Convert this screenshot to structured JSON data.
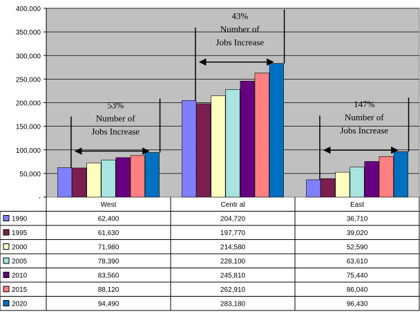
{
  "chart_data": {
    "type": "bar",
    "categories": [
      "West",
      "Centr al",
      "East"
    ],
    "series": [
      {
        "name": "1990",
        "values": [
          62400,
          204720,
          36710
        ],
        "labels": [
          "62,400",
          "204,720",
          "36,710"
        ],
        "color": "#8080ff"
      },
      {
        "name": "1995",
        "values": [
          61630,
          197770,
          39020
        ],
        "labels": [
          "61,630",
          "197,770",
          "39,020"
        ],
        "color": "#7a1f4f"
      },
      {
        "name": "2000",
        "values": [
          71980,
          214580,
          52590
        ],
        "labels": [
          "71,980",
          "214,580",
          "52,590"
        ],
        "color": "#ffffc0"
      },
      {
        "name": "2005",
        "values": [
          78390,
          228100,
          63610
        ],
        "labels": [
          "78,390",
          "228,100",
          "63,610"
        ],
        "color": "#a8e4e0"
      },
      {
        "name": "2010",
        "values": [
          83560,
          245810,
          75440
        ],
        "labels": [
          "83,560",
          "245,810",
          "75,440"
        ],
        "color": "#660080"
      },
      {
        "name": "2015",
        "values": [
          88120,
          262910,
          86040
        ],
        "labels": [
          "88,120",
          "262,910",
          "86,040"
        ],
        "color": "#ff8080"
      },
      {
        "name": "2020",
        "values": [
          94490,
          283180,
          96430
        ],
        "labels": [
          "94,490",
          "283,180",
          "96,430"
        ],
        "color": "#0070c0"
      }
    ],
    "ylim": [
      0,
      400000
    ],
    "yticks": [
      0,
      50000,
      100000,
      150000,
      200000,
      250000,
      300000,
      350000,
      400000
    ],
    "ytick_labels": [
      "-",
      "50,000",
      "100,000",
      "150,000",
      "200,000",
      "250,000",
      "300,000",
      "350,000",
      "400,000"
    ],
    "grid": true,
    "plot_background": "#c0c0c0",
    "annotations": [
      {
        "category": "West",
        "lines": [
          "53%",
          "Number of",
          "Jobs Increase"
        ]
      },
      {
        "category": "Centr al",
        "lines": [
          "43%",
          "Number of",
          "Jobs Increase"
        ]
      },
      {
        "category": "East",
        "lines": [
          "147%",
          "Number of",
          "Jobs Increase"
        ]
      }
    ],
    "legend": "data-table"
  }
}
